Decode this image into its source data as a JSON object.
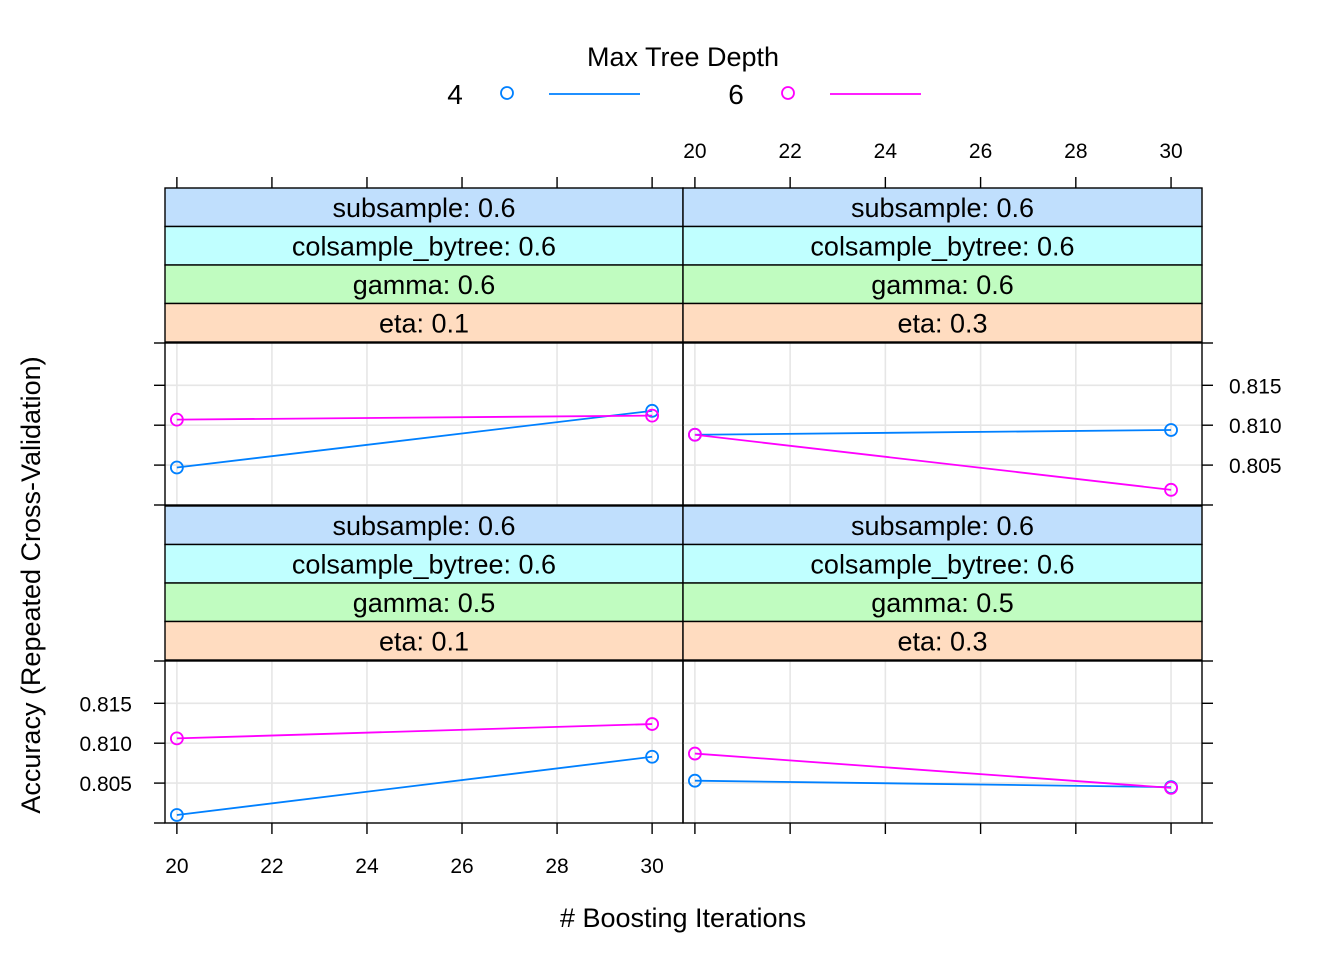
{
  "chart_data": {
    "type": "line",
    "legend": {
      "title": "Max Tree Depth",
      "entries": [
        {
          "label": "4",
          "color": "#0080ff"
        },
        {
          "label": "6",
          "color": "#ff00ff"
        }
      ],
      "placement": "top"
    },
    "xlabel": "# Boosting Iterations",
    "ylabel": "Accuracy (Repeated Cross-Validation)",
    "x_ticks": [
      20,
      22,
      24,
      26,
      28,
      30
    ],
    "y_ticks": [
      0.805,
      0.81,
      0.815
    ],
    "y_tick_labels": [
      "0.805",
      "0.810",
      "0.815"
    ],
    "xlim": [
      19.75,
      30.65
    ],
    "ylim": [
      0.8,
      0.8203
    ],
    "grid": true,
    "colors": {
      "strip_subsample": "#c0dffd",
      "strip_colsample": "#c0ffff",
      "strip_gamma": "#c0fcc0",
      "strip_eta": "#ffdcc0",
      "grid": "#e6e6e6",
      "axis": "#000000"
    },
    "panels": [
      {
        "strips": [
          "subsample: 0.6",
          "colsample_bytree: 0.6",
          "gamma: 0.6",
          "eta: 0.1"
        ],
        "series": [
          {
            "name": "4",
            "x": [
              20,
              30
            ],
            "values": [
              0.8047,
              0.8118
            ]
          },
          {
            "name": "6",
            "x": [
              20,
              30
            ],
            "values": [
              0.8107,
              0.8112
            ]
          }
        ]
      },
      {
        "strips": [
          "subsample: 0.6",
          "colsample_bytree: 0.6",
          "gamma: 0.6",
          "eta: 0.3"
        ],
        "series": [
          {
            "name": "4",
            "x": [
              20,
              30
            ],
            "values": [
              0.8088,
              0.8094
            ]
          },
          {
            "name": "6",
            "x": [
              20,
              30
            ],
            "values": [
              0.8088,
              0.8019
            ]
          }
        ]
      },
      {
        "strips": [
          "subsample: 0.6",
          "colsample_bytree: 0.6",
          "gamma: 0.5",
          "eta: 0.1"
        ],
        "series": [
          {
            "name": "4",
            "x": [
              20,
              30
            ],
            "values": [
              0.801,
              0.8083
            ]
          },
          {
            "name": "6",
            "x": [
              20,
              30
            ],
            "values": [
              0.8106,
              0.8124
            ]
          }
        ]
      },
      {
        "strips": [
          "subsample: 0.6",
          "colsample_bytree: 0.6",
          "gamma: 0.5",
          "eta: 0.3"
        ],
        "series": [
          {
            "name": "4",
            "x": [
              20,
              30
            ],
            "values": [
              0.8053,
              0.8045
            ]
          },
          {
            "name": "6",
            "x": [
              20,
              30
            ],
            "values": [
              0.8087,
              0.8044
            ]
          }
        ]
      }
    ]
  }
}
